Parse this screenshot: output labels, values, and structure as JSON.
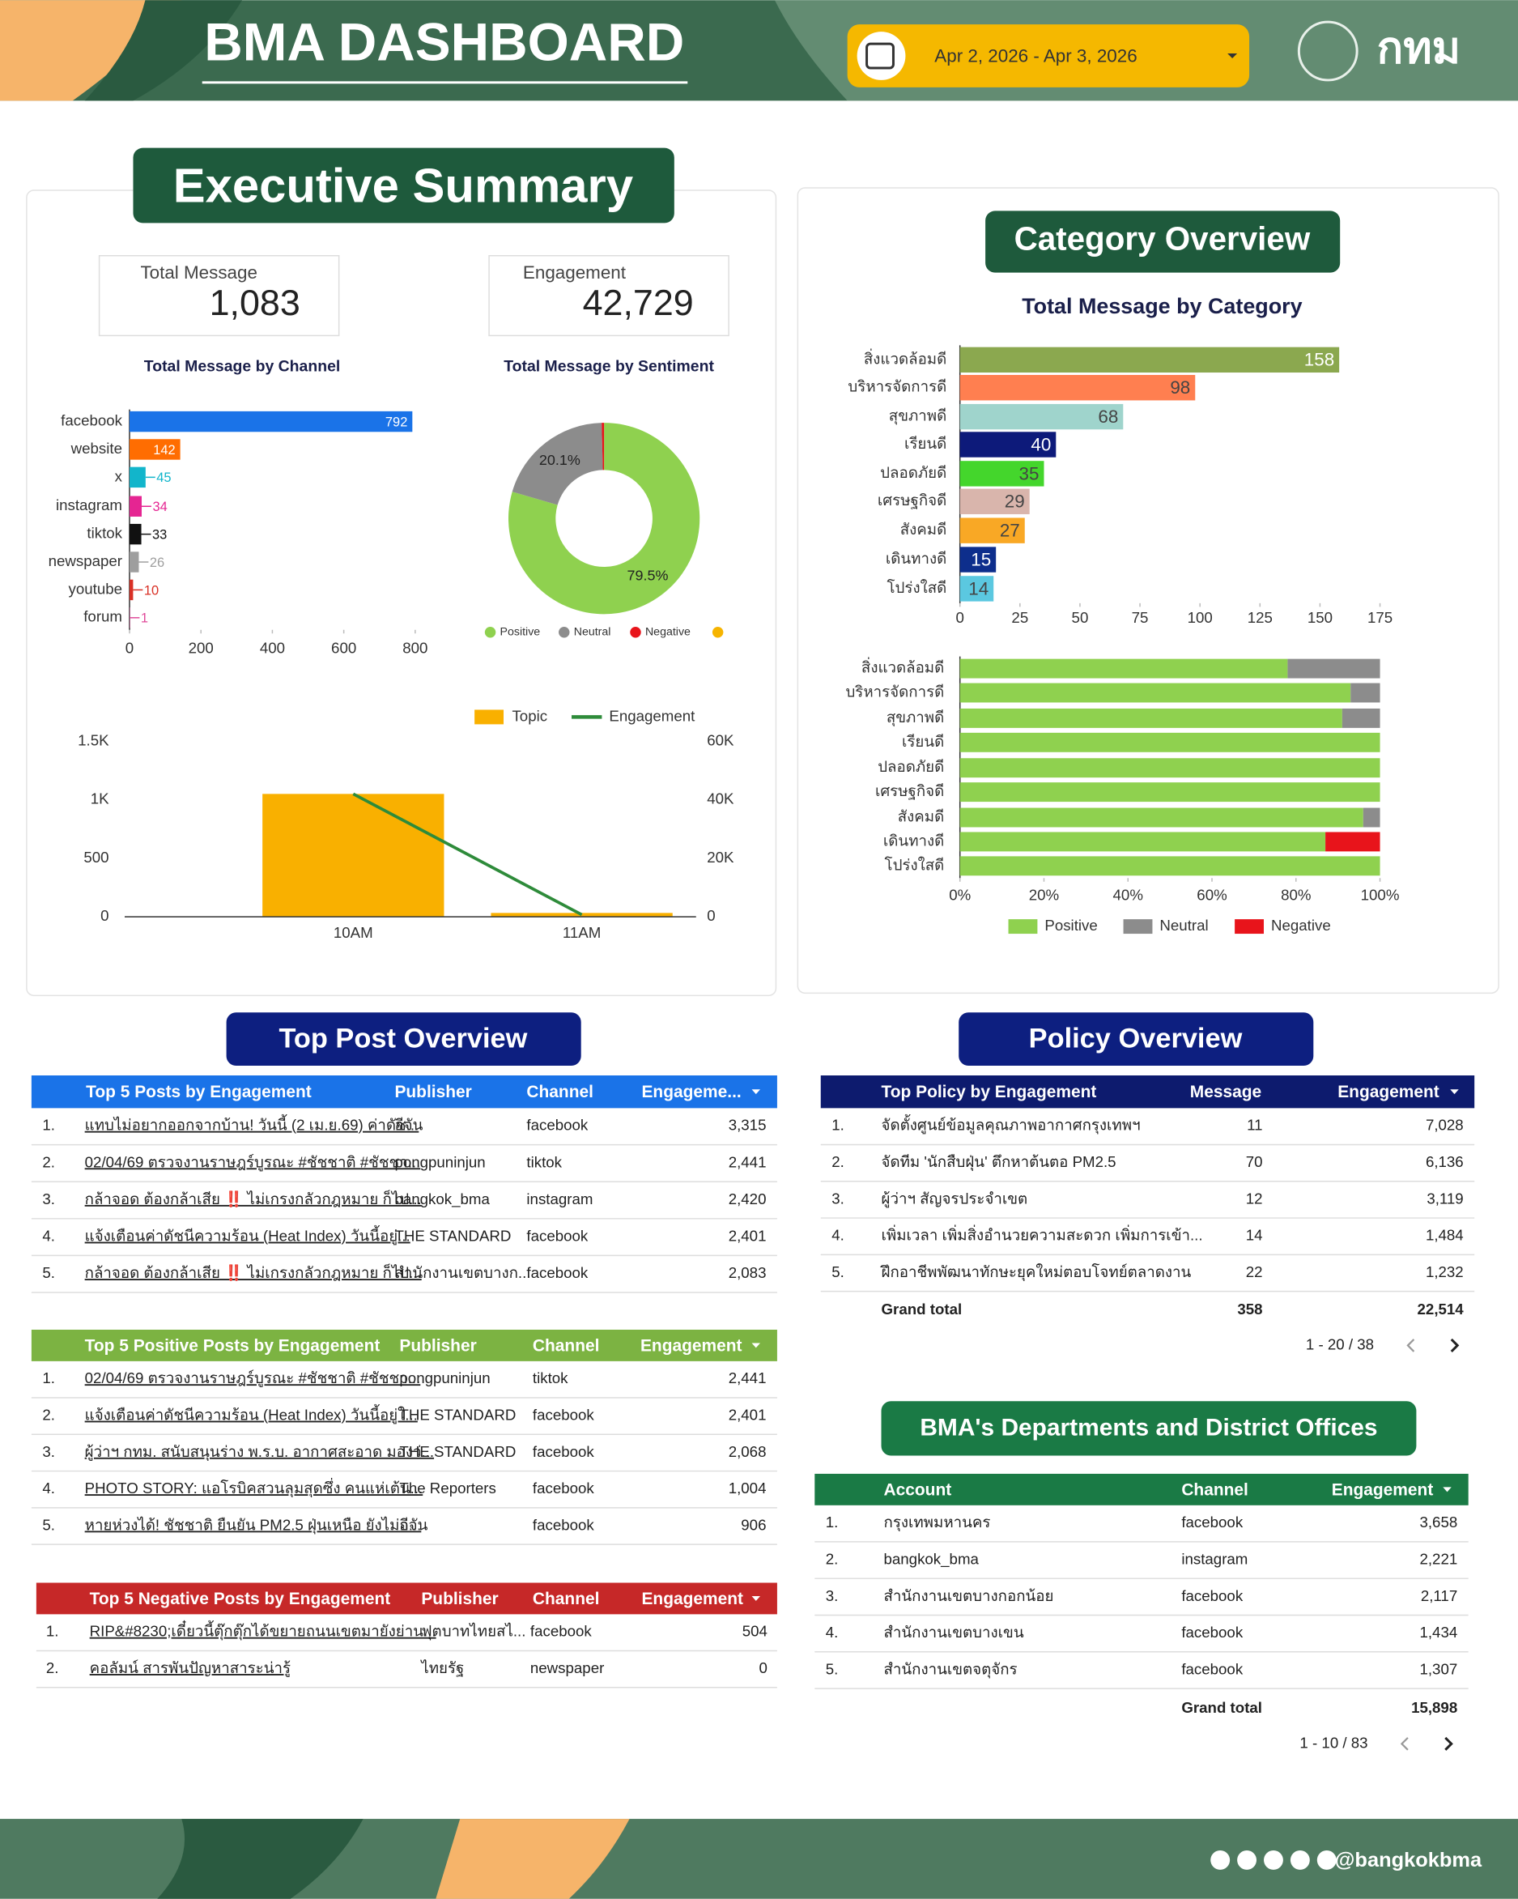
{
  "header": {
    "title": "BMA DASHBOARD",
    "date_range": "Apr 2, 2026 - Apr 3, 2026",
    "logo": "กทม"
  },
  "executive_summary": {
    "title": "Executive Summary",
    "kpis": [
      {
        "label": "Total Message",
        "value": "1,083"
      },
      {
        "label": "Engagement",
        "value": "42,729"
      }
    ]
  },
  "category_overview": {
    "title": "Category Overview"
  },
  "chart_data": [
    {
      "type": "bar",
      "orientation": "horizontal",
      "title": "Total Message by Channel",
      "categories": [
        "facebook",
        "website",
        "x",
        "instagram",
        "tiktok",
        "newspaper",
        "youtube",
        "forum"
      ],
      "values": [
        792,
        142,
        45,
        34,
        33,
        26,
        10,
        1
      ],
      "colors": [
        "#1a73e8",
        "#ff6d01",
        "#12b5cb",
        "#e52592",
        "#111111",
        "#9e9e9e",
        "#d93025",
        "#e04a9a"
      ],
      "xlim": [
        0,
        800
      ],
      "xticks": [
        0,
        200,
        400,
        600,
        800
      ]
    },
    {
      "type": "pie",
      "donut": true,
      "title": "Total Message by Sentiment",
      "categories": [
        "Positive",
        "Neutral",
        "Negative",
        null
      ],
      "values": [
        79.5,
        20.1,
        0.4,
        0
      ],
      "value_labels": [
        "79.5%",
        "20.1%",
        null,
        null
      ],
      "colors": [
        "#8fd14f",
        "#8c8c8c",
        "#e8141b",
        "#f6b400"
      ],
      "legend": "bottom"
    },
    {
      "type": "combo",
      "categories": [
        "10AM",
        "11AM"
      ],
      "series": [
        {
          "name": "Topic",
          "type": "bar",
          "color": "#f9b000",
          "values": [
            1050,
            33
          ]
        },
        {
          "name": "Engagement",
          "type": "line",
          "axis": "y2",
          "color": "#2e8b3a",
          "values": [
            42000,
            729
          ]
        }
      ],
      "ylim": [
        0,
        1500
      ],
      "yticks": [
        0,
        500,
        {
          "value": 1000,
          "label": "1K"
        },
        {
          "value": 1500,
          "label": "1.5K"
        }
      ],
      "y2lim": [
        0,
        60000
      ],
      "y2ticks": [
        0,
        {
          "value": 20000,
          "label": "20K"
        },
        {
          "value": 40000,
          "label": "40K"
        },
        {
          "value": 60000,
          "label": "60K"
        }
      ],
      "legend": "top"
    },
    {
      "type": "bar",
      "orientation": "horizontal",
      "title": "Total Message by Category",
      "categories": [
        "สิ่งแวดล้อมดี",
        "บริหารจัดการดี",
        "สุขภาพดี",
        "เรียนดี",
        "ปลอดภัยดี",
        "เศรษฐกิจดี",
        "สังคมดี",
        "เดินทางดี",
        "โปร่งใสดี"
      ],
      "values": [
        158,
        98,
        68,
        40,
        35,
        29,
        27,
        15,
        14
      ],
      "colors": [
        "#8ba84f",
        "#ff7f50",
        "#9fd4cc",
        "#0d1a7a",
        "#44d62c",
        "#d9b5ac",
        "#f9a825",
        "#0d2e8c",
        "#5bc8e0"
      ],
      "xlim": [
        0,
        175
      ],
      "xticks": [
        0,
        25,
        50,
        75,
        100,
        125,
        150,
        175
      ]
    },
    {
      "type": "bar",
      "orientation": "horizontal",
      "stacked": true,
      "categories": [
        "สิ่งแวดล้อมดี",
        "บริหารจัดการดี",
        "สุขภาพดี",
        "เรียนดี",
        "ปลอดภัยดี",
        "เศรษฐกิจดี",
        "สังคมดี",
        "เดินทางดี",
        "โปร่งใสดี"
      ],
      "series": [
        {
          "name": "Positive",
          "color": "#8fd14f",
          "values": [
            78,
            93,
            91,
            100,
            100,
            100,
            96,
            87,
            100
          ]
        },
        {
          "name": "Neutral",
          "color": "#8c8c8c",
          "values": [
            22,
            7,
            9,
            0,
            0,
            0,
            4,
            0,
            0
          ]
        },
        {
          "name": "Negative",
          "color": "#e8141b",
          "values": [
            0,
            0,
            0,
            0,
            0,
            0,
            0,
            13,
            0
          ]
        }
      ],
      "xlim": [
        0,
        100
      ],
      "xticks": [
        {
          "value": 0,
          "label": "0%"
        },
        {
          "value": 20,
          "label": "20%"
        },
        {
          "value": 40,
          "label": "40%"
        },
        {
          "value": 60,
          "label": "60%"
        },
        {
          "value": 80,
          "label": "80%"
        },
        {
          "value": 100,
          "label": "100%"
        }
      ],
      "legend": "bottom"
    }
  ],
  "top_post_overview": {
    "title": "Top Post Overview",
    "tables": [
      {
        "header": [
          "Top 5 Posts by Engagement",
          "Publisher",
          "Channel",
          "Engageme..."
        ],
        "rows": [
          [
            "1.",
            "แทบไม่อยากออกจากบ้าน! วันนี้ (2 เม.ย.69) ค่าดัช...",
            "อีจัน",
            "facebook",
            "3,315"
          ],
          [
            "2.",
            "02/04/69 ตรวจงานราษฎร์บูรณะ #ชัชชาติ #ชัชชา...",
            "pongpuninjun",
            "tiktok",
            "2,441"
          ],
          [
            "3.",
            "กล้าจอด ต้องกล้าเสีย ‼️ ไม่เกรงกลัวกฎหมาย ก็ไป...",
            "bangkok_bma",
            "instagram",
            "2,420"
          ],
          [
            "4.",
            "แจ้งเตือนค่าดัชนีความร้อน (Heat Index) วันนี้อยู่...",
            "THE STANDARD",
            "facebook",
            "2,401"
          ],
          [
            "5.",
            "กล้าจอด ต้องกล้าเสีย ‼️ ไม่เกรงกลัวกฎหมาย ก็ไป...",
            "สำนักงานเขตบางก...",
            "facebook",
            "2,083"
          ]
        ]
      },
      {
        "header": [
          "Top 5 Positive Posts by Engagement",
          "Publisher",
          "Channel",
          "Engagement"
        ],
        "rows": [
          [
            "1.",
            "02/04/69 ตรวจงานราษฎร์บูรณะ #ชัชชาติ #ชัชชา...",
            "pongpuninjun",
            "tiktok",
            "2,441"
          ],
          [
            "2.",
            "แจ้งเตือนค่าดัชนีความร้อน (Heat Index) วันนี้อยู่ใ...",
            "THE STANDARD",
            "facebook",
            "2,401"
          ],
          [
            "3.",
            "ผู้ว่าฯ กทม. สนับสนุนร่าง พ.ร.บ. อากาศสะอาด มองว่...",
            "THE STANDARD",
            "facebook",
            "2,068"
          ],
          [
            "4.",
            "PHOTO STORY: แอโรบิคสวนลุมสุดซึ่ง คนแห่เต้น...",
            "The Reporters",
            "facebook",
            "1,004"
          ],
          [
            "5.",
            "หายห่วงได้! ชัชชาติ ยืนยัน PM2.5 ฝุ่นเหนือ ยังไม่ถ...",
            "อีจัน",
            "facebook",
            "906"
          ]
        ]
      },
      {
        "header": [
          "Top 5 Negative Posts by Engagement",
          "Publisher",
          "Channel",
          "Engagement"
        ],
        "rows": [
          [
            "1.",
            "RIP&#8230;เดี๋ยวนี้ตุ๊กตุ๊กได้ขยายถนนเขตมายังย่าน...",
            "ฟุตบาทไทยสไ...",
            "facebook",
            "504"
          ],
          [
            "2.",
            "คอลัมน์ สารพันปัญหาสาระน่ารู้",
            "ไทยรัฐ",
            "newspaper",
            "0"
          ]
        ]
      }
    ]
  },
  "policy_overview": {
    "title": "Policy Overview",
    "table": {
      "header": [
        "Top Policy by Engagement",
        "Message",
        "Engagement"
      ],
      "rows": [
        [
          "1.",
          "จัดตั้งศูนย์ข้อมูลคุณภาพอากาศกรุงเทพฯ",
          "11",
          "7,028"
        ],
        [
          "2.",
          "จัดทีม 'นักสืบฝุ่น' ตึกหาต้นตอ PM2.5",
          "70",
          "6,136"
        ],
        [
          "3.",
          "ผู้ว่าฯ สัญจรประจำเขต",
          "12",
          "3,119"
        ],
        [
          "4.",
          "เพิ่มเวลา เพิ่มสิ่งอำนวยความสะดวก เพิ่มการเข้า...",
          "14",
          "1,484"
        ],
        [
          "5.",
          "ฝึกอาชีพพัฒนาทักษะยุคใหม่ตอบโจทย์ตลาดงาน",
          "22",
          "1,232"
        ]
      ],
      "grand_total": [
        "Grand total",
        "358",
        "22,514"
      ],
      "pagination": "1 - 20 / 38"
    }
  },
  "departments": {
    "title": "BMA's Departments and District Offices",
    "table": {
      "header": [
        "Account",
        "Channel",
        "Engagement"
      ],
      "rows": [
        [
          "1.",
          "กรุงเทพมหานคร",
          "facebook",
          "3,658"
        ],
        [
          "2.",
          "bangkok_bma",
          "instagram",
          "2,221"
        ],
        [
          "3.",
          "สำนักงานเขตบางกอกน้อย",
          "facebook",
          "2,117"
        ],
        [
          "4.",
          "สำนักงานเขตบางเขน",
          "facebook",
          "1,434"
        ],
        [
          "5.",
          "สำนักงานเขตจตุจักร",
          "facebook",
          "1,307"
        ]
      ],
      "grand_total": [
        "Grand total",
        "15,898"
      ],
      "pagination": "1 - 10 / 83"
    }
  },
  "footer": {
    "handle": "@bangkokbma"
  }
}
